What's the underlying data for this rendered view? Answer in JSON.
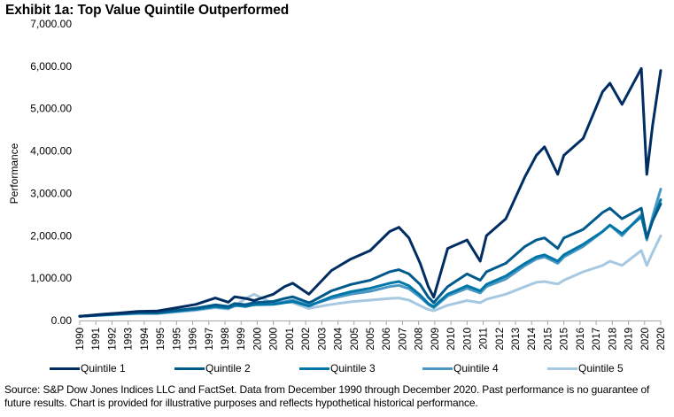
{
  "title": "Exhibit 1a: Top Value Quintile Outperformed",
  "source_note": "Source: S&P Dow Jones Indices LLC and FactSet. Data from December 1990 through December 2020. Past performance is no guarantee of future results. Chart is provided for illustrative purposes and reflects hypothetical historical performance.",
  "chart_data": {
    "type": "line",
    "title": "Exhibit 1a: Top Value Quintile Outperformed",
    "xlabel": "",
    "ylabel": "Performance",
    "ylim": [
      0,
      7000
    ],
    "xlim": [
      1990.92,
      2020.92
    ],
    "grid": false,
    "legend_position": "bottom",
    "y_ticks": [
      "0.00",
      "1,000.00",
      "2,000.00",
      "3,000.00",
      "4,000.00",
      "5,000.00",
      "6,000.00",
      "7,000.00"
    ],
    "y_tick_values": [
      0,
      1000,
      2000,
      3000,
      4000,
      5000,
      6000,
      7000
    ],
    "x_ticks": [
      "1990",
      "1991",
      "1992",
      "1993",
      "1994",
      "1995",
      "1995",
      "1996",
      "1997",
      "1998",
      "1999",
      "2000",
      "2000",
      "2001",
      "2002",
      "2003",
      "2004",
      "2005",
      "2005",
      "2006",
      "2007",
      "2008",
      "2009",
      "2010",
      "2010",
      "2011",
      "2012",
      "2013",
      "2014",
      "2015",
      "2015",
      "2016",
      "2017",
      "2018",
      "2019",
      "2020",
      "2020"
    ],
    "x": [
      1990.92,
      1991.92,
      1992.92,
      1993.92,
      1994.92,
      1995.92,
      1996.92,
      1997.92,
      1998.6,
      1998.92,
      1999.5,
      1999.92,
      2000.92,
      2001.5,
      2001.92,
      2002.75,
      2002.92,
      2003.92,
      2004.92,
      2005.92,
      2006.92,
      2007.4,
      2007.92,
      2008.5,
      2008.92,
      2009.2,
      2009.92,
      2010.92,
      2011.6,
      2011.92,
      2012.92,
      2013.92,
      2014.5,
      2014.92,
      2015.6,
      2015.92,
      2016.92,
      2017.92,
      2018.3,
      2018.92,
      2019.92,
      2020.2,
      2020.5,
      2020.92
    ],
    "series": [
      {
        "name": "Quintile 1",
        "color": "#002D62",
        "values": [
          100,
          140,
          175,
          215,
          225,
          300,
          380,
          530,
          430,
          560,
          520,
          470,
          620,
          800,
          880,
          620,
          700,
          1180,
          1450,
          1650,
          2100,
          2200,
          1950,
          1350,
          800,
          550,
          1700,
          1900,
          1400,
          2000,
          2400,
          3400,
          3900,
          4100,
          3450,
          3900,
          4300,
          5400,
          5600,
          5100,
          5950,
          3450,
          4600,
          5900
        ]
      },
      {
        "name": "Quintile 2",
        "color": "#005A8C",
        "values": [
          100,
          130,
          160,
          190,
          190,
          240,
          290,
          370,
          330,
          400,
          370,
          420,
          450,
          520,
          560,
          420,
          450,
          700,
          850,
          950,
          1150,
          1200,
          1100,
          850,
          550,
          420,
          800,
          1100,
          950,
          1150,
          1350,
          1750,
          1900,
          1950,
          1700,
          1950,
          2150,
          2550,
          2650,
          2400,
          2650,
          1950,
          2350,
          2750
        ]
      },
      {
        "name": "Quintile 3",
        "color": "#0077A8",
        "values": [
          100,
          125,
          150,
          175,
          175,
          225,
          270,
          330,
          300,
          360,
          330,
          370,
          380,
          420,
          450,
          340,
          370,
          560,
          680,
          760,
          880,
          920,
          820,
          600,
          400,
          330,
          620,
          820,
          700,
          850,
          1050,
          1350,
          1500,
          1550,
          1400,
          1550,
          1800,
          2100,
          2250,
          2050,
          2450,
          1950,
          2350,
          2850
        ]
      },
      {
        "name": "Quintile 4",
        "color": "#4A97C4",
        "values": [
          100,
          125,
          148,
          170,
          170,
          215,
          260,
          320,
          290,
          340,
          380,
          420,
          400,
          440,
          480,
          360,
          380,
          520,
          620,
          690,
          800,
          830,
          750,
          550,
          380,
          300,
          580,
          760,
          650,
          800,
          980,
          1300,
          1450,
          1500,
          1350,
          1500,
          1750,
          2100,
          2250,
          2000,
          2500,
          1900,
          2450,
          3100
        ]
      },
      {
        "name": "Quintile 5",
        "color": "#A6C8E0",
        "values": [
          100,
          118,
          138,
          160,
          160,
          200,
          240,
          300,
          270,
          350,
          520,
          620,
          400,
          440,
          420,
          280,
          300,
          380,
          440,
          480,
          520,
          530,
          480,
          350,
          260,
          230,
          360,
          470,
          420,
          500,
          620,
          800,
          900,
          920,
          860,
          950,
          1150,
          1300,
          1400,
          1300,
          1650,
          1300,
          1600,
          2000
        ]
      }
    ]
  }
}
